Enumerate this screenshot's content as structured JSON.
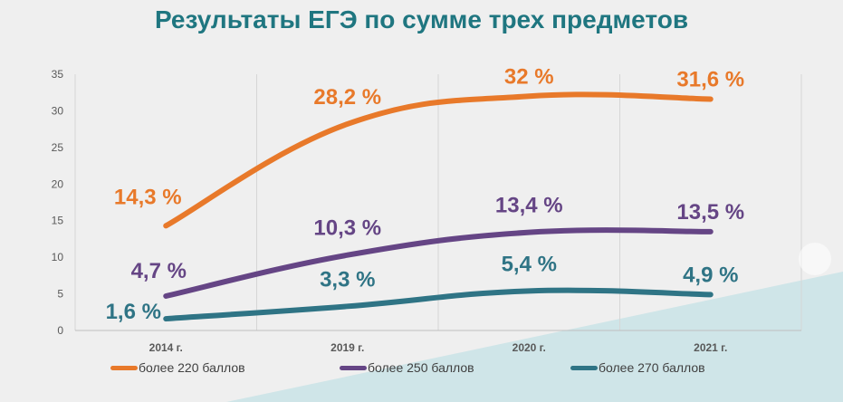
{
  "chart_data": {
    "type": "line",
    "title": "Результаты ЕГЭ по сумме трех предметов",
    "categories": [
      "2014 г.",
      "2019 г.",
      "2020 г.",
      "2021 г."
    ],
    "ylim": [
      0,
      35
    ],
    "yticks": [
      0,
      5,
      10,
      15,
      20,
      25,
      30,
      35
    ],
    "grid": "vertical",
    "legend_position": "bottom",
    "series": [
      {
        "name": "более 220 баллов",
        "color": "#e8792a",
        "values": [
          14.3,
          28.2,
          32,
          31.6
        ],
        "labels": [
          "14,3 %",
          "28,2 %",
          "32 %",
          "31,6 %"
        ]
      },
      {
        "name": "более 250 баллов",
        "color": "#654585",
        "values": [
          4.7,
          10.3,
          13.4,
          13.5
        ],
        "labels": [
          "4,7 %",
          "10,3 %",
          "13,4 %",
          "13,5 %"
        ]
      },
      {
        "name": "более 270 баллов",
        "color": "#2f7485",
        "values": [
          1.6,
          3.3,
          5.4,
          4.9
        ],
        "labels": [
          "1,6 %",
          "3,3 %",
          "5,4 %",
          "4,9 %"
        ]
      }
    ]
  },
  "colors": {
    "background": "#efefef",
    "title": "#1f7680",
    "accent_shape": "#c9e3e6"
  },
  "icons": {
    "corner": "screen-share-icon"
  }
}
